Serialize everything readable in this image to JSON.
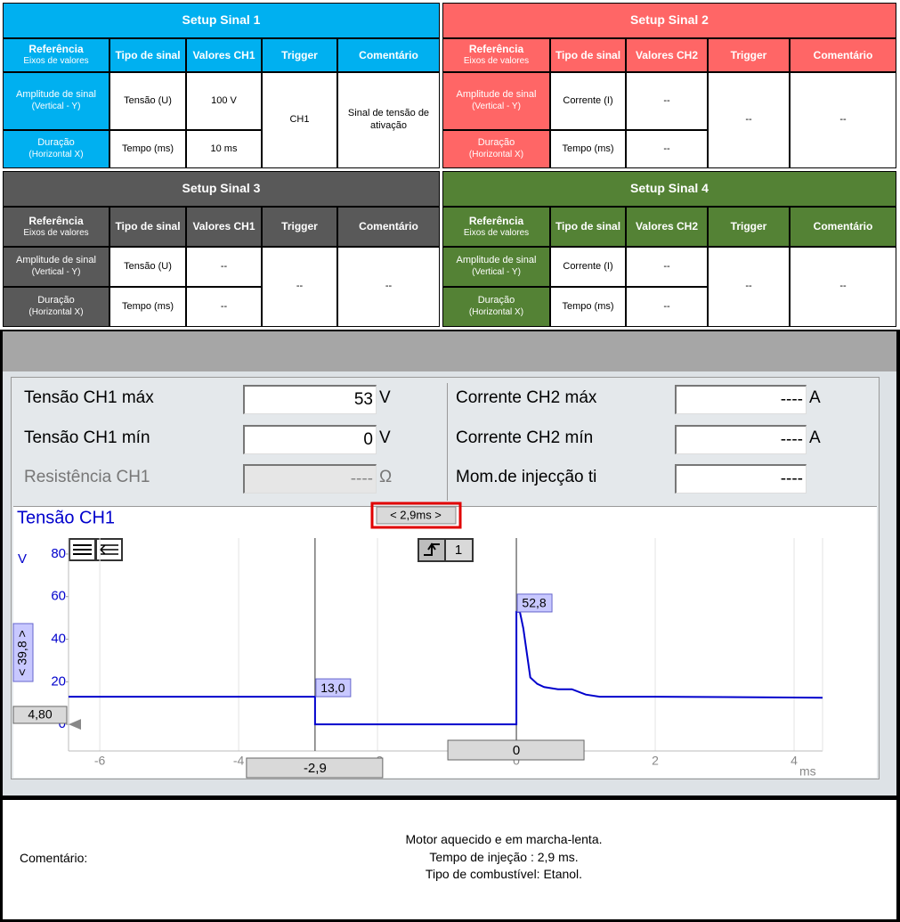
{
  "setups": [
    {
      "title": "Setup Sinal 1",
      "color": "#00b0f0",
      "headers": {
        "reference": "Referência",
        "reference_sub": "Eixos de valores",
        "signal_type": "Tipo de sinal",
        "values": "Valores CH1",
        "trigger": "Trigger",
        "comment": "Comentário"
      },
      "rows": [
        {
          "reference": "Amplitude de sinal",
          "reference_sub": "(Vertical - Y)",
          "signal_type": "Tensão (U)",
          "value": "100 V"
        },
        {
          "reference": "Duração",
          "reference_sub": "(Horizontal X)",
          "signal_type": "Tempo (ms)",
          "value": "10 ms"
        }
      ],
      "trigger": "CH1",
      "comment": "Sinal de tensão de ativação"
    },
    {
      "title": "Setup Sinal 2",
      "color": "#ff6666",
      "headers": {
        "reference": "Referência",
        "reference_sub": "Eixos de valores",
        "signal_type": "Tipo de sinal",
        "values": "Valores CH2",
        "trigger": "Trigger",
        "comment": "Comentário"
      },
      "rows": [
        {
          "reference": "Amplitude de sinal",
          "reference_sub": "(Vertical - Y)",
          "signal_type": "Corrente (I)",
          "value": "--"
        },
        {
          "reference": "Duração",
          "reference_sub": "(Horizontal X)",
          "signal_type": "Tempo (ms)",
          "value": "--"
        }
      ],
      "trigger": "--",
      "comment": "--"
    },
    {
      "title": "Setup Sinal 3",
      "color": "#595959",
      "headers": {
        "reference": "Referência",
        "reference_sub": "Eixos de valores",
        "signal_type": "Tipo de sinal",
        "values": "Valores CH1",
        "trigger": "Trigger",
        "comment": "Comentário"
      },
      "rows": [
        {
          "reference": "Amplitude de sinal",
          "reference_sub": "(Vertical - Y)",
          "signal_type": "Tensão (U)",
          "value": "--"
        },
        {
          "reference": "Duração",
          "reference_sub": "(Horizontal X)",
          "signal_type": "Tempo (ms)",
          "value": "--"
        }
      ],
      "trigger": "--",
      "comment": "--"
    },
    {
      "title": "Setup Sinal 4",
      "color": "#548235",
      "headers": {
        "reference": "Referência",
        "reference_sub": "Eixos de valores",
        "signal_type": "Tipo de sinal",
        "values": "Valores CH2",
        "trigger": "Trigger",
        "comment": "Comentário"
      },
      "rows": [
        {
          "reference": "Amplitude de sinal",
          "reference_sub": "(Vertical - Y)",
          "signal_type": "Corrente (I)",
          "value": "--"
        },
        {
          "reference": "Duração",
          "reference_sub": "(Horizontal X)",
          "signal_type": "Tempo (ms)",
          "value": "--"
        }
      ],
      "trigger": "--",
      "comment": "--"
    }
  ],
  "measurements": [
    {
      "label": "Tensão CH1 máx",
      "value": "53",
      "unit": "V"
    },
    {
      "label": "Tensão CH1 mín",
      "value": "0",
      "unit": "V"
    },
    {
      "label": "Resistência CH1",
      "value": "----",
      "unit": "Ω",
      "disabled": true
    },
    {
      "label": "Corrente CH2 máx",
      "value": "----",
      "unit": "A"
    },
    {
      "label": "Corrente CH2 mín",
      "value": "----",
      "unit": "A"
    },
    {
      "label": "Mom.de injecção ti",
      "value": "----"
    }
  ],
  "chart_data": {
    "type": "line",
    "title": "Tensão CH1",
    "color": "#0000cc",
    "y_unit": "V",
    "x_unit": "ms",
    "x": [
      -6.45,
      -2.9,
      -2.9,
      0,
      0,
      0.05,
      0.1,
      0.2,
      0.3,
      0.4,
      0.6,
      0.8,
      1.0,
      1.2,
      2.0,
      3.0,
      4.41
    ],
    "values": [
      13,
      13,
      0,
      0,
      52.8,
      52.8,
      45,
      22,
      19,
      17.5,
      16.5,
      16.5,
      14,
      13,
      13,
      12.8,
      12.5
    ],
    "xlim": [
      -6.45,
      4.41
    ],
    "xticks": [
      -6,
      -4,
      -2,
      0,
      2,
      4
    ],
    "ylim": [
      -12.5,
      87.5
    ],
    "yticks": [
      0,
      20,
      40,
      60,
      80
    ],
    "grid": true,
    "cursors": [
      {
        "x": -2.9,
        "label": "-2,9",
        "y": 13.0,
        "value_label": "13,0"
      },
      {
        "x": 0,
        "label": "0",
        "y": 52.8,
        "value_label": "52,8"
      }
    ],
    "delta_label": "< 2,9ms >",
    "y_cursor_label": "< 39,8 >",
    "level_label": "4,80",
    "trigger_channel": "1"
  },
  "comment": {
    "label": "Comentário:",
    "lines": [
      "Motor aquecido e em marcha-lenta.",
      "Tempo de injeção : 2,9 ms.",
      "Tipo de combustível: Etanol."
    ]
  }
}
